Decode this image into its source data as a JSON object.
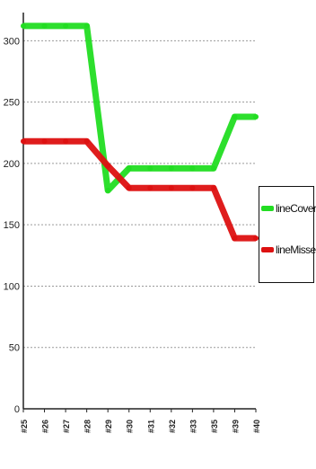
{
  "chart_data": {
    "type": "line",
    "categories": [
      "#25",
      "#26",
      "#27",
      "#28",
      "#29",
      "#30",
      "#31",
      "#32",
      "#33",
      "#35",
      "#39",
      "#40"
    ],
    "series": [
      {
        "name": "lineCovered",
        "color": "#22dd22",
        "values": [
          312,
          312,
          312,
          312,
          178,
          196,
          196,
          196,
          196,
          196,
          238,
          238
        ]
      },
      {
        "name": "lineMissed",
        "color": "#dd1111",
        "values": [
          218,
          218,
          218,
          218,
          198,
          180,
          180,
          180,
          180,
          180,
          139,
          139
        ]
      }
    ],
    "y_ticks": [
      "0",
      "50",
      "100",
      "150",
      "200",
      "250",
      "300"
    ],
    "ylim": [
      0,
      320
    ],
    "grid": true,
    "legend": "right"
  }
}
